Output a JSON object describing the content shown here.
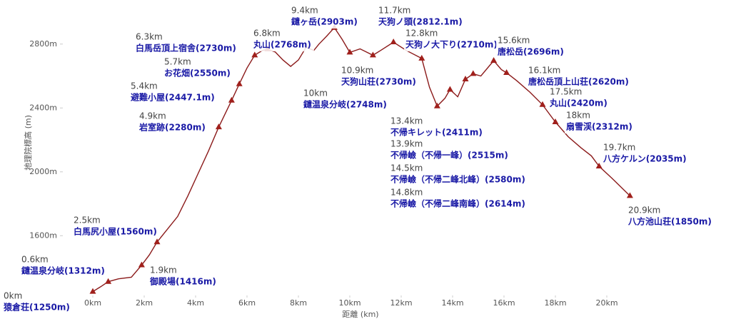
{
  "chart_data": {
    "type": "line",
    "x_label": "距離 (km)",
    "y_label": "地理院標高 (m)",
    "color": "#8b1a1a",
    "marker_color": "#a0201c",
    "xlim": [
      0,
      21
    ],
    "ylim": [
      1150,
      3000
    ],
    "xticks": [
      {
        "value": 0,
        "label": "0km"
      },
      {
        "value": 2,
        "label": "2km"
      },
      {
        "value": 4,
        "label": "4km"
      },
      {
        "value": 6,
        "label": "6km"
      },
      {
        "value": 8,
        "label": "8km"
      },
      {
        "value": 10,
        "label": "10km"
      },
      {
        "value": 12,
        "label": "12km"
      },
      {
        "value": 14,
        "label": "14km"
      },
      {
        "value": 16,
        "label": "16km"
      },
      {
        "value": 18,
        "label": "18km"
      },
      {
        "value": 20,
        "label": "20km"
      }
    ],
    "yticks": [
      {
        "value": 1600,
        "label": "1600m"
      },
      {
        "value": 2000,
        "label": "2000m"
      },
      {
        "value": 2400,
        "label": "2400m"
      },
      {
        "value": 2800,
        "label": "2800m"
      }
    ],
    "x": [
      0,
      0.3,
      0.6,
      1.0,
      1.5,
      1.9,
      2.2,
      2.5,
      2.9,
      3.3,
      3.7,
      4.1,
      4.5,
      4.9,
      5.2,
      5.4,
      5.7,
      6.0,
      6.3,
      6.6,
      6.8,
      7.1,
      7.4,
      7.7,
      8.0,
      8.3,
      8.6,
      8.8,
      9.1,
      9.4,
      9.7,
      10.0,
      10.4,
      10.9,
      11.2,
      11.7,
      12.2,
      12.8,
      13.1,
      13.4,
      13.7,
      13.9,
      14.2,
      14.5,
      14.8,
      15.1,
      15.6,
      15.9,
      16.1,
      16.5,
      17.0,
      17.5,
      18.0,
      18.5,
      19.0,
      19.4,
      19.7,
      20.2,
      20.9
    ],
    "values": [
      1250,
      1280,
      1312,
      1330,
      1340,
      1416,
      1480,
      1560,
      1640,
      1720,
      1850,
      1990,
      2130,
      2280,
      2380,
      2447,
      2550,
      2650,
      2730,
      2760,
      2768,
      2750,
      2700,
      2660,
      2700,
      2780,
      2760,
      2800,
      2850,
      2903,
      2830,
      2748,
      2770,
      2730,
      2760,
      2812,
      2760,
      2710,
      2530,
      2411,
      2460,
      2515,
      2470,
      2580,
      2614,
      2600,
      2696,
      2640,
      2620,
      2570,
      2500,
      2420,
      2312,
      2220,
      2150,
      2100,
      2035,
      1960,
      1850
    ],
    "waypoints": [
      {
        "km_label": "0km",
        "name": "猿倉荘(1250m)",
        "x": 0,
        "y": 1250
      },
      {
        "km_label": "0.6km",
        "name": "鑓温泉分岐(1312m)",
        "x": 0.6,
        "y": 1312
      },
      {
        "km_label": "1.9km",
        "name": "御殿場(1416m)",
        "x": 1.9,
        "y": 1416
      },
      {
        "km_label": "2.5km",
        "name": "白馬尻小屋(1560m)",
        "x": 2.5,
        "y": 1560
      },
      {
        "km_label": "4.9km",
        "name": "岩室跡(2280m)",
        "x": 4.9,
        "y": 2280
      },
      {
        "km_label": "5.4km",
        "name": "避難小屋(2447.1m)",
        "x": 5.4,
        "y": 2447.1
      },
      {
        "km_label": "5.7km",
        "name": "お花畑(2550m)",
        "x": 5.7,
        "y": 2550
      },
      {
        "km_label": "6.3km",
        "name": "白馬岳頂上宿舎(2730m)",
        "x": 6.3,
        "y": 2730
      },
      {
        "km_label": "6.8km",
        "name": "丸山(2768m)",
        "x": 6.8,
        "y": 2768
      },
      {
        "km_label": "9.4km",
        "name": "鑓ヶ岳(2903m)",
        "x": 9.4,
        "y": 2903
      },
      {
        "km_label": "10km",
        "name": "鑓温泉分岐(2748m)",
        "x": 10,
        "y": 2748
      },
      {
        "km_label": "10.9km",
        "name": "天狗山荘(2730m)",
        "x": 10.9,
        "y": 2730
      },
      {
        "km_label": "11.7km",
        "name": "天狗ノ頭(2812.1m)",
        "x": 11.7,
        "y": 2812.1
      },
      {
        "km_label": "12.8km",
        "name": "天狗ノ大下り(2710m)",
        "x": 12.8,
        "y": 2710
      },
      {
        "km_label": "13.4km",
        "name": "不帰キレット(2411m)",
        "x": 13.4,
        "y": 2411
      },
      {
        "km_label": "13.9km",
        "name": "不帰嶮（不帰一峰）(2515m)",
        "x": 13.9,
        "y": 2515
      },
      {
        "km_label": "14.5km",
        "name": "不帰嶮（不帰二峰北峰）(2580m)",
        "x": 14.5,
        "y": 2580
      },
      {
        "km_label": "14.8km",
        "name": "不帰嶮（不帰二峰南峰）(2614m)",
        "x": 14.8,
        "y": 2614
      },
      {
        "km_label": "15.6km",
        "name": "唐松岳(2696m)",
        "x": 15.6,
        "y": 2696
      },
      {
        "km_label": "16.1km",
        "name": "唐松岳頂上山荘(2620m)",
        "x": 16.1,
        "y": 2620
      },
      {
        "km_label": "17.5km",
        "name": "丸山(2420m)",
        "x": 17.5,
        "y": 2420
      },
      {
        "km_label": "18km",
        "name": "扇雪渓(2312m)",
        "x": 18,
        "y": 2312
      },
      {
        "km_label": "19.7km",
        "name": "八方ケルン(2035m)",
        "x": 19.7,
        "y": 2035
      },
      {
        "km_label": "20.9km",
        "name": "八方池山荘(1850m)",
        "x": 20.9,
        "y": 1850
      }
    ]
  }
}
